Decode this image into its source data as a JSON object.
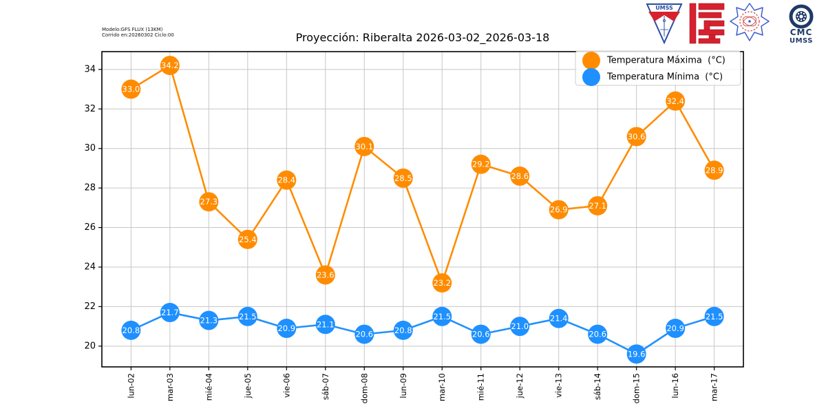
{
  "header": {
    "model_info_line1": "Modelo:GFS FLUX (13KM)",
    "model_info_line2": "Corrido en:20260302 Ciclo:00",
    "title": "Proyección: Riberalta 2026-03-02_2026-03-18"
  },
  "logos": {
    "shield_text": "UMSS",
    "cmc_line1": "CMC",
    "cmc_line2": "UMSS",
    "colors": {
      "shield_blue": "#2b4ea0",
      "fcyt_red": "#d7212f",
      "emblem_blue": "#3b5bd0",
      "emblem_red": "#c94040",
      "cmc_navy": "#1e3a68"
    }
  },
  "chart_data": {
    "type": "line",
    "title": "Proyección: Riberalta 2026-03-02_2026-03-18",
    "categories": [
      "lun-02",
      "mar-03",
      "mié-04",
      "jue-05",
      "vie-06",
      "sáb-07",
      "dom-08",
      "lun-09",
      "mar-10",
      "mié-11",
      "jue-12",
      "vie-13",
      "sáb-14",
      "dom-15",
      "lun-16",
      "mar-17"
    ],
    "series": [
      {
        "name": "Temperatura Máxima  (°C)",
        "color": "#ff8c00",
        "values": [
          33.0,
          34.2,
          27.3,
          25.4,
          28.4,
          23.6,
          30.1,
          28.5,
          23.2,
          29.2,
          28.6,
          26.9,
          27.1,
          30.6,
          32.4,
          28.9
        ]
      },
      {
        "name": "Temperatura Mínima  (°C)",
        "color": "#1e90ff",
        "values": [
          20.8,
          21.7,
          21.3,
          21.5,
          20.9,
          21.1,
          20.6,
          20.8,
          21.5,
          20.6,
          21.0,
          21.4,
          20.6,
          19.6,
          20.9,
          21.5
        ]
      }
    ],
    "xlabel": "",
    "ylabel": "",
    "ylim": [
      18.95,
      34.9
    ],
    "yticks": [
      20,
      22,
      24,
      26,
      28,
      30,
      32,
      34
    ],
    "grid": true,
    "legend_position": "upper right",
    "value_label_color": "#ffffff"
  }
}
